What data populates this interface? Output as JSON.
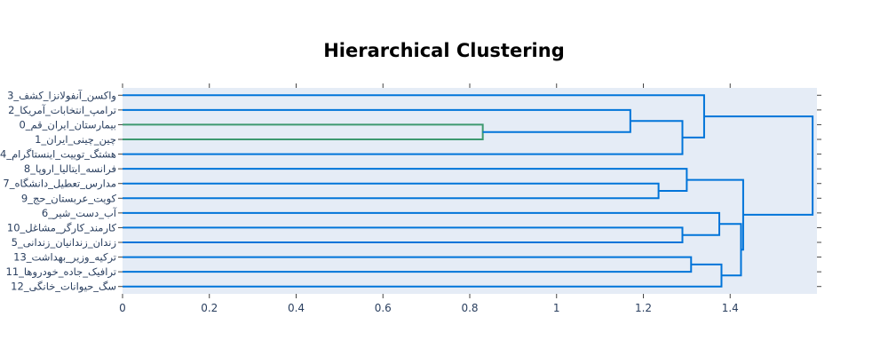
{
  "chart_data": {
    "type": "dendrogram",
    "title": "Hierarchical Clustering",
    "xlabel": "",
    "ylabel": "",
    "orientation": "left",
    "xlim": [
      0,
      1.6
    ],
    "x_ticks": [
      0,
      0.2,
      0.4,
      0.6,
      0.8,
      1,
      1.2,
      1.4
    ],
    "leaves_top_to_bottom": [
      "واکسن_آنفولانزا_کشف_3",
      "ترامپ_انتخابات_آمریکا_2",
      "بیمارستان_ایران_قم_0",
      "چین_چینی_ایران_1",
      "هشتگ_توییت_اینستاگرام_4",
      "فرانسه_ایتالیا_اروپا_8",
      "مدارس_تعطیل_دانشگاه_7",
      "کویت_عربستان_حج_9",
      "آب_دست_شیر_6",
      "کارمند_کارگر_مشاغل_10",
      "زندان_زندانیان_زندانی_5",
      "ترکیه_وزیر_بهداشت_13",
      "ترافیک_جاده_خودروها_11",
      "سگ_حیوانات_خانگی_12"
    ],
    "merges": [
      {
        "children": [
          "0",
          "1"
        ],
        "height": 0.83,
        "color": "#3d9970"
      },
      {
        "children": [
          "2",
          "m0"
        ],
        "height": 1.17,
        "color": "#0074d9"
      },
      {
        "children": [
          "m1",
          "4"
        ],
        "height": 1.29,
        "color": "#0074d9"
      },
      {
        "children": [
          "3",
          "m2"
        ],
        "height": 1.34,
        "color": "#0074d9"
      },
      {
        "children": [
          "7",
          "9"
        ],
        "height": 1.235,
        "color": "#0074d9"
      },
      {
        "children": [
          "8",
          "m4"
        ],
        "height": 1.3,
        "color": "#0074d9"
      },
      {
        "children": [
          "10",
          "5"
        ],
        "height": 1.29,
        "color": "#0074d9"
      },
      {
        "children": [
          "6",
          "m6"
        ],
        "height": 1.375,
        "color": "#0074d9"
      },
      {
        "children": [
          "13",
          "11"
        ],
        "height": 1.31,
        "color": "#0074d9"
      },
      {
        "children": [
          "m8",
          "12"
        ],
        "height": 1.38,
        "color": "#0074d9"
      },
      {
        "children": [
          "m7",
          "m9"
        ],
        "height": 1.425,
        "color": "#0074d9"
      },
      {
        "children": [
          "m5",
          "m10"
        ],
        "height": 1.43,
        "color": "#0074d9"
      },
      {
        "children": [
          "m3",
          "m11"
        ],
        "height": 1.59,
        "color": "#0074d9"
      }
    ],
    "colors": {
      "plot_bg": "#e5ecf6",
      "paper_bg": "#ffffff",
      "branch": "#0074d9",
      "subcluster": "#3d9970",
      "text": "#2a3f5f"
    }
  }
}
